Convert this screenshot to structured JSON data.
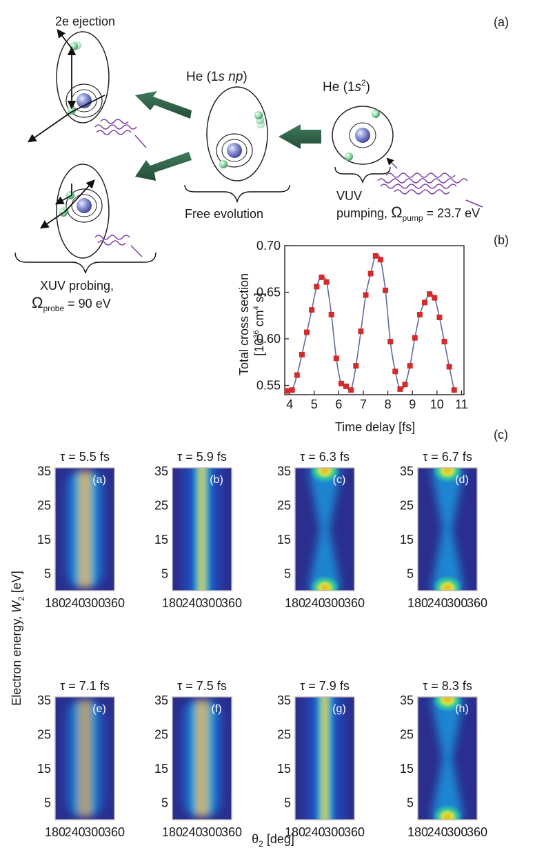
{
  "figure": {
    "panel_labels": {
      "a": "(a)",
      "b": "(b)",
      "c": "(c)"
    }
  },
  "diagram_a": {
    "ejection_label": "2e ejection",
    "he_np_label_prefix": "He (1",
    "he_np_label_s": "s",
    "he_np_label_np": "np",
    "he_np_label_suffix": ")",
    "he_gs_label_prefix": "He (1",
    "he_gs_label_s": "s",
    "he_gs_label_sup": "2",
    "he_gs_label_suffix": ")",
    "free_evolution": "Free evolution",
    "vuv_line1": "VUV",
    "vuv_line2_prefix": "pumping, ",
    "omega": "Ω",
    "pump_sub": "pump",
    "pump_value": " = 23.7 eV",
    "xuv_line1": "XUV probing,",
    "probe_sub": "probe",
    "probe_value": " = 90 eV"
  },
  "chart_data": [
    {
      "type": "scatter",
      "panel": "(b)",
      "ylabel_line1": "Total cross section",
      "ylabel_line2_prefix": "[10",
      "ylabel_line2_sup1": "36",
      "ylabel_line2_mid": " cm",
      "ylabel_line2_sup2": "4",
      "ylabel_line2_suffix": " s]",
      "xlabel": "Time delay [fs]",
      "xlim": [
        3.8,
        11.1
      ],
      "ylim": [
        0.54,
        0.7
      ],
      "xticks": [
        4,
        5,
        6,
        7,
        8,
        9,
        10,
        11
      ],
      "yticks": [
        "0.55",
        "0.60",
        "0.65",
        "0.70"
      ],
      "ytick_values": [
        0.55,
        0.6,
        0.65,
        0.7
      ],
      "marker_color": "#d42a2a",
      "line_color": "#5a6b9e",
      "x": [
        3.9,
        4.1,
        4.3,
        4.5,
        4.7,
        4.9,
        5.1,
        5.3,
        5.5,
        5.7,
        5.9,
        6.1,
        6.3,
        6.5,
        6.7,
        6.9,
        7.1,
        7.3,
        7.5,
        7.7,
        7.9,
        8.1,
        8.3,
        8.5,
        8.7,
        8.9,
        9.1,
        9.3,
        9.5,
        9.7,
        9.9,
        10.1,
        10.3,
        10.5,
        10.7
      ],
      "y": [
        0.544,
        0.545,
        0.561,
        0.583,
        0.607,
        0.631,
        0.656,
        0.666,
        0.661,
        0.626,
        0.579,
        0.552,
        0.549,
        0.545,
        0.571,
        0.608,
        0.647,
        0.67,
        0.689,
        0.685,
        0.652,
        0.597,
        0.565,
        0.546,
        0.551,
        0.571,
        0.601,
        0.626,
        0.639,
        0.648,
        0.644,
        0.623,
        0.597,
        0.57,
        0.545
      ]
    },
    {
      "type": "heatmap",
      "panel": "(c)",
      "ylabel_prefix": "Electron energy, ",
      "ylabel_var": "W",
      "ylabel_sub": "2",
      "ylabel_suffix": " [eV]",
      "xlabel_var": "θ",
      "xlabel_sub": "2",
      "xlabel_suffix": " [deg]",
      "xticks": [
        "180",
        "240",
        "300",
        "360"
      ],
      "yticks": [
        "35",
        "25",
        "15",
        "5"
      ],
      "xlim": [
        180,
        360
      ],
      "ylim": [
        0,
        36
      ],
      "panels": [
        {
          "label": "(a)",
          "tau": "τ = 5.5 fs",
          "shape": "blob",
          "intensity": 1.0
        },
        {
          "label": "(b)",
          "tau": "τ = 5.9 fs",
          "shape": "band",
          "intensity": 0.6
        },
        {
          "label": "(c)",
          "tau": "τ = 6.3 fs",
          "shape": "xshape",
          "intensity": 0.55
        },
        {
          "label": "(d)",
          "tau": "τ = 6.7 fs",
          "shape": "xshape",
          "intensity": 0.45
        },
        {
          "label": "(e)",
          "tau": "τ = 7.1 fs",
          "shape": "blob",
          "intensity": 0.85
        },
        {
          "label": "(f)",
          "tau": "τ = 7.5 fs",
          "shape": "blob",
          "intensity": 1.0
        },
        {
          "label": "(g)",
          "tau": "τ = 7.9 fs",
          "shape": "band",
          "intensity": 0.8
        },
        {
          "label": "(h)",
          "tau": "τ = 8.3 fs",
          "shape": "xshape",
          "intensity": 0.45
        }
      ]
    }
  ]
}
